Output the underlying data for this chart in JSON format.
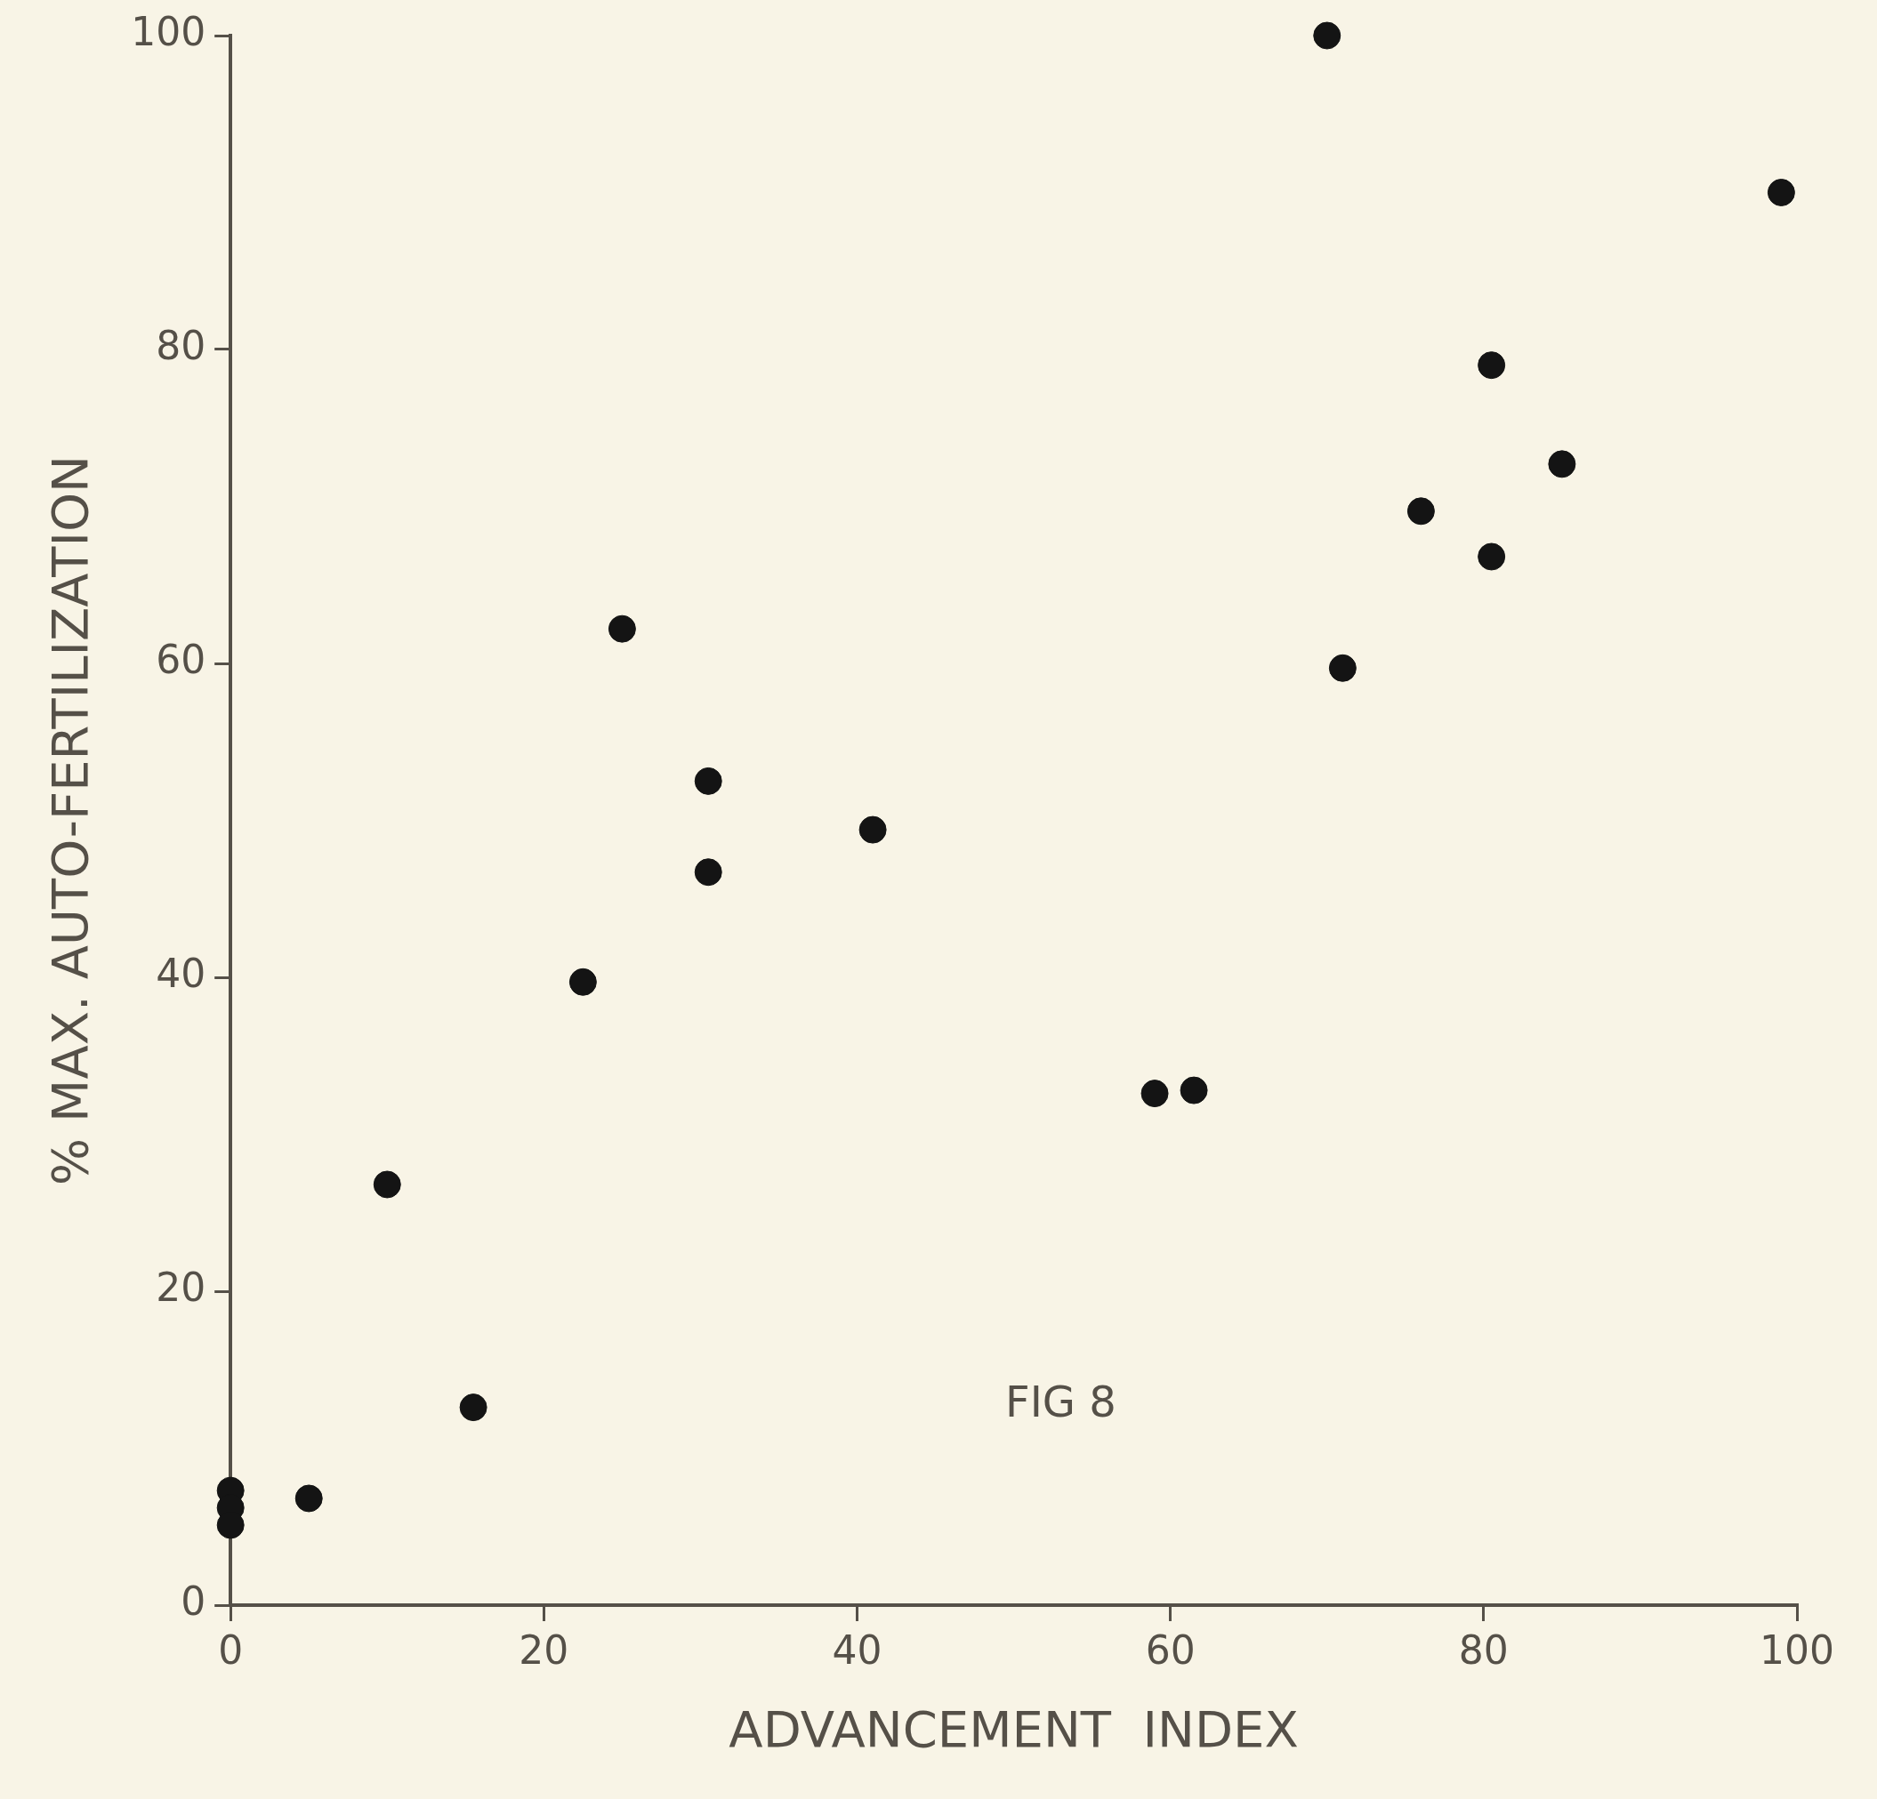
{
  "chart_data": {
    "type": "scatter",
    "xlabel": "ADVANCEMENT  INDEX",
    "ylabel": "% MAX. AUTO-FERTILIZATION",
    "annotations": [
      "FIG 8"
    ],
    "grid": false,
    "legend": false,
    "marker": "circle",
    "xlim": [
      0,
      100
    ],
    "ylim": [
      0,
      100
    ],
    "xticks": [
      0,
      20,
      40,
      60,
      80,
      100
    ],
    "yticks": [
      0,
      20,
      40,
      60,
      80,
      100
    ],
    "series": [
      {
        "color": "#141414",
        "x": [
          70,
          99,
          80.5,
          85,
          76,
          80.5,
          71,
          25,
          30.5,
          41,
          30.5,
          22.5,
          59,
          61.5,
          10,
          15.5,
          5,
          0,
          0,
          0
        ],
        "values": [
          100,
          90,
          79,
          72.7,
          69.7,
          66.8,
          59.7,
          62.2,
          52.5,
          49.4,
          46.7,
          39.7,
          32.6,
          32.8,
          26.8,
          12.6,
          6.8,
          7.3,
          6.2,
          5.1
        ]
      }
    ]
  }
}
